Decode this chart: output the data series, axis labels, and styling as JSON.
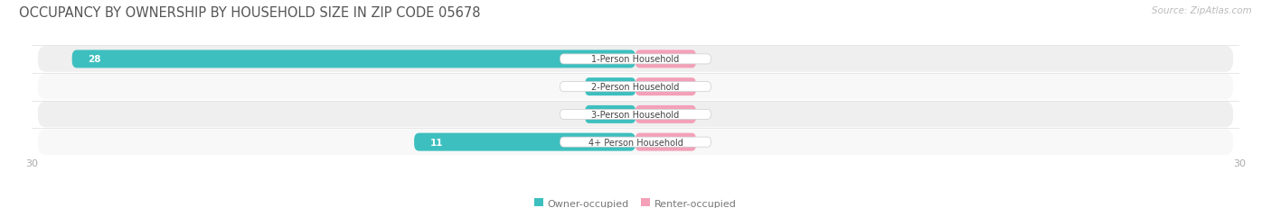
{
  "title": "OCCUPANCY BY OWNERSHIP BY HOUSEHOLD SIZE IN ZIP CODE 05678",
  "source": "Source: ZipAtlas.com",
  "categories": [
    "1-Person Household",
    "2-Person Household",
    "3-Person Household",
    "4+ Person Household"
  ],
  "owner_values": [
    28,
    0,
    0,
    11
  ],
  "renter_values": [
    0,
    0,
    0,
    0
  ],
  "owner_color": "#3DBFBF",
  "renter_color": "#F4A0B8",
  "row_bg_color_odd": "#EFEFEF",
  "row_bg_color_even": "#F8F8F8",
  "x_min": -30,
  "x_max": 30,
  "title_fontsize": 10.5,
  "source_fontsize": 7.5,
  "tick_fontsize": 8,
  "legend_fontsize": 8,
  "value_fontsize": 7.5,
  "category_fontsize": 7,
  "bar_height": 0.65,
  "owner_stub": 2.5,
  "renter_stub": 3.0,
  "figsize": [
    14.06,
    2.32
  ],
  "dpi": 100
}
